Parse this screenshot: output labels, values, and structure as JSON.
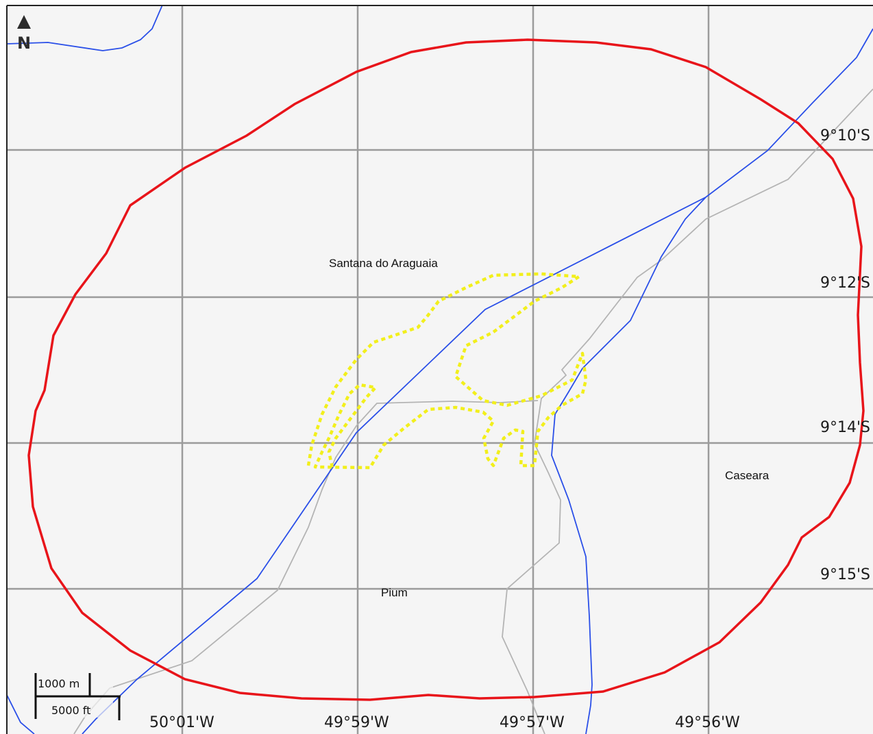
{
  "north_arrow": {
    "label": "N"
  },
  "grid": {
    "latitudes": [
      "9°10'S",
      "9°12'S",
      "9°14'S",
      "9°15'S"
    ],
    "longitudes": [
      "50°01'W",
      "49°59'W",
      "49°57'W",
      "49°56'W"
    ]
  },
  "places": {
    "santana": "Santana do Araguaia",
    "caseara": "Caseara",
    "pium": "Pium"
  },
  "scale_bar": {
    "metric": "1000 m",
    "imperial": "5000 ft"
  },
  "colors": {
    "background": "#f5f5f5",
    "grid": "#999999",
    "boundary": "#e8141a",
    "river": "#2a4fe8",
    "road": "#b4b4b4",
    "track": "#f2ef1c"
  }
}
